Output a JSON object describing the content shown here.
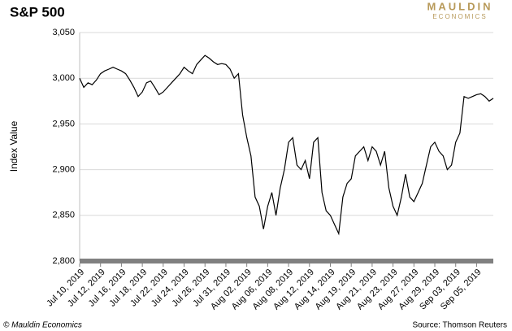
{
  "chart_data": {
    "type": "line",
    "title": "S&P 500",
    "logo": {
      "top": "MAULDIN",
      "bottom": "ECONOMICS"
    },
    "ylabel": "Index Value",
    "footer_left": "© Mauldin Economics",
    "footer_right": "Source: Thomson Reuters",
    "categories": [
      "Jul 10, 2019",
      null,
      null,
      null,
      null,
      "Jul 12, 2019",
      null,
      null,
      null,
      null,
      "Jul 16, 2019",
      null,
      null,
      null,
      null,
      "Jul 18, 2019",
      null,
      null,
      null,
      null,
      "Jul 22, 2019",
      null,
      null,
      null,
      null,
      "Jul 24, 2019",
      null,
      null,
      null,
      null,
      "Jul 26, 2019",
      null,
      null,
      null,
      null,
      "Jul 31, 2019",
      null,
      null,
      null,
      null,
      "Aug 02, 2019",
      null,
      null,
      null,
      null,
      "Aug 06, 2019",
      null,
      null,
      null,
      null,
      "Aug 08, 2019",
      null,
      null,
      null,
      null,
      "Aug 12, 2019",
      null,
      null,
      null,
      null,
      "Aug 14, 2019",
      null,
      null,
      null,
      null,
      "Aug 19, 2019",
      null,
      null,
      null,
      null,
      "Aug 21, 2019",
      null,
      null,
      null,
      null,
      "Aug 23, 2019",
      null,
      null,
      null,
      null,
      "Aug 27, 2019",
      null,
      null,
      null,
      null,
      "Aug 29, 2019",
      null,
      null,
      null,
      null,
      "Sep 03, 2019",
      null,
      null,
      null,
      null,
      "Sep 05, 2019",
      null,
      null,
      null,
      null
    ],
    "series": [
      {
        "name": "S&P 500",
        "color": "#000000",
        "values": [
          3000,
          2990,
          2995,
          2993,
          2998,
          3005,
          3008,
          3010,
          3012,
          3010,
          3008,
          3005,
          2998,
          2990,
          2980,
          2985,
          2995,
          2997,
          2990,
          2982,
          2985,
          2990,
          2995,
          3000,
          3005,
          3012,
          3008,
          3005,
          3015,
          3020,
          3025,
          3022,
          3018,
          3015,
          3016,
          3015,
          3010,
          3000,
          3005,
          2960,
          2935,
          2915,
          2870,
          2860,
          2835,
          2860,
          2875,
          2850,
          2880,
          2900,
          2930,
          2935,
          2905,
          2900,
          2910,
          2890,
          2930,
          2935,
          2875,
          2855,
          2850,
          2840,
          2830,
          2870,
          2885,
          2890,
          2915,
          2920,
          2925,
          2910,
          2925,
          2920,
          2905,
          2920,
          2880,
          2860,
          2850,
          2870,
          2895,
          2870,
          2865,
          2875,
          2885,
          2905,
          2925,
          2930,
          2920,
          2915,
          2900,
          2905,
          2930,
          2940,
          2980,
          2978,
          2980,
          2982,
          2983,
          2980,
          2975,
          2978
        ]
      }
    ],
    "ylim": [
      2800,
      3050
    ],
    "yticks": [
      {
        "value": 2800,
        "label": "2,800"
      },
      {
        "value": 2850,
        "label": "2,850"
      },
      {
        "value": 2900,
        "label": "2,900"
      },
      {
        "value": 2950,
        "label": "2,950"
      },
      {
        "value": 3000,
        "label": "3,000"
      },
      {
        "value": 3050,
        "label": "3,050"
      }
    ],
    "grid": true
  }
}
